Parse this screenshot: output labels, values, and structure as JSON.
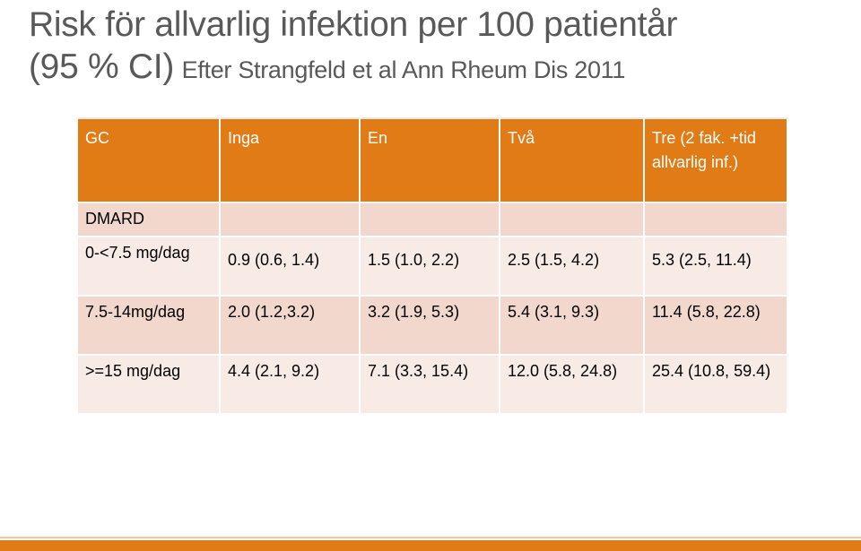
{
  "title": {
    "line1": "Risk för allvarlig infektion per 100 patientår",
    "line2_main": "(95 % CI)",
    "line2_sub": "Efter Strangfeld et al Ann Rheum Dis 2011"
  },
  "table": {
    "header": [
      "GC",
      "Inga",
      "En",
      "Två",
      "Tre (2 fak. +tid allvarlig inf.)"
    ],
    "dmard_label": "DMARD",
    "rows": [
      {
        "label": "0-<7.5 mg/dag",
        "values": [
          "0.9 (0.6, 1.4)",
          "1.5 (1.0, 2.2)",
          "2.5 (1.5, 4.2)",
          "5.3 (2.5, 11.4)"
        ]
      },
      {
        "label": "7.5-14mg/dag",
        "values": [
          "2.0 (1.2,3.2)",
          "3.2 (1.9, 5.3)",
          "5.4 (3.1, 9.3)",
          "11.4 (5.8, 22.8)"
        ]
      },
      {
        "label": ">=15 mg/dag",
        "values": [
          "4.4 (2.1, 9.2)",
          "7.1 (3.3, 15.4)",
          "12.0 (5.8, 24.8)",
          "25.4 (10.8, 59.4)"
        ]
      }
    ]
  },
  "colors": {
    "accent": "#e07b16",
    "band_dark": "#f2d8cc",
    "band_light": "#f8ebe6",
    "title_text": "#595959"
  }
}
